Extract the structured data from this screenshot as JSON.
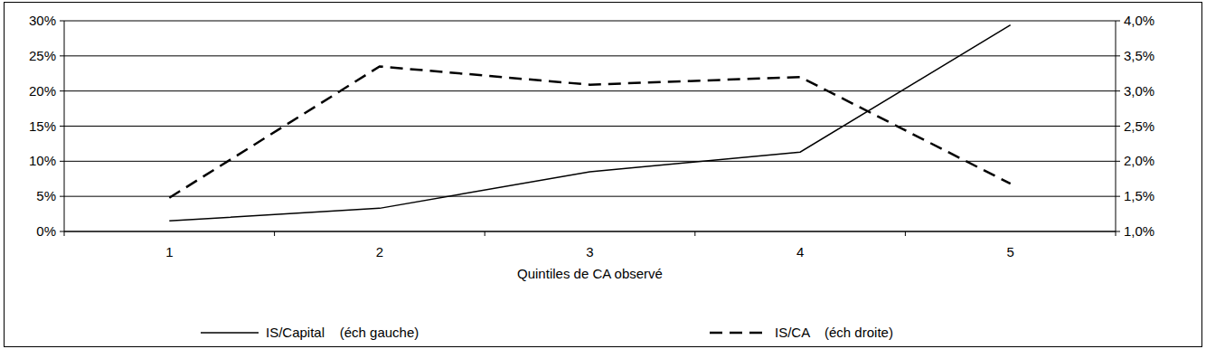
{
  "chart_data": {
    "type": "line",
    "xlabel": "Quintiles de CA observé",
    "categories": [
      "1",
      "2",
      "3",
      "4",
      "5"
    ],
    "ylim": [
      0,
      30
    ],
    "yticks": [
      {
        "value": 0,
        "label": "0%"
      },
      {
        "value": 5,
        "label": "5%"
      },
      {
        "value": 10,
        "label": "10%"
      },
      {
        "value": 15,
        "label": "15%"
      },
      {
        "value": 20,
        "label": "20%"
      },
      {
        "value": 25,
        "label": "25%"
      },
      {
        "value": 30,
        "label": "30%"
      }
    ],
    "y2lim": [
      1.0,
      4.0
    ],
    "y2ticks": [
      {
        "value": 1.0,
        "label": "1,0%"
      },
      {
        "value": 1.5,
        "label": "1,5%"
      },
      {
        "value": 2.0,
        "label": "2,0%"
      },
      {
        "value": 2.5,
        "label": "2,5%"
      },
      {
        "value": 3.0,
        "label": "3,0%"
      },
      {
        "value": 3.5,
        "label": "3,5%"
      },
      {
        "value": 4.0,
        "label": "4,0%"
      }
    ],
    "grid": true,
    "legend": "bottom",
    "series": [
      {
        "name": "IS/Capital    (éch gauche)",
        "color": "#000000",
        "line_style": "solid",
        "values": [
          1.5,
          3.3,
          8.5,
          11.3,
          29.4
        ]
      },
      {
        "name": "IS/CA    (éch droite)",
        "color": "#000000",
        "line_style": "dashed",
        "axis": "y2",
        "values": [
          1.48,
          3.35,
          3.09,
          3.2,
          1.68
        ]
      }
    ]
  }
}
